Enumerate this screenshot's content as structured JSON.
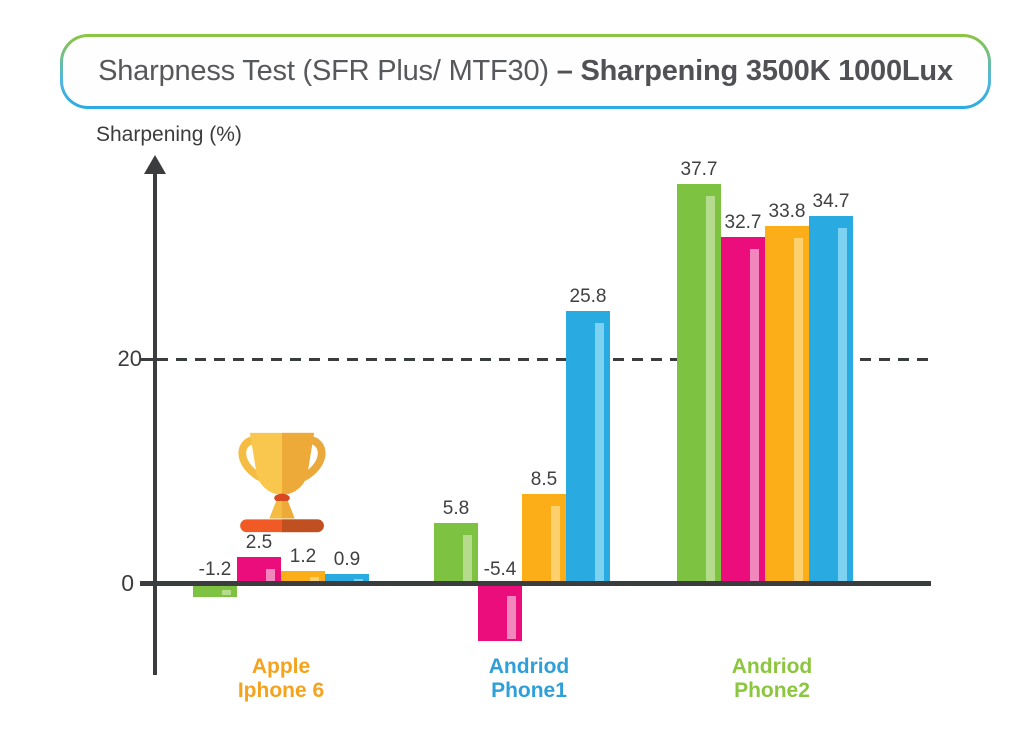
{
  "title": {
    "regular": "Sharpness Test (SFR Plus/ MTF30) ",
    "bold": "– Sharpening 3500K 1000Lux"
  },
  "y_axis": {
    "label": "Sharpening (%)",
    "tick_zero": "0",
    "tick_twenty": "20"
  },
  "groups": [
    {
      "line1": "Apple",
      "line2": "Iphone 6",
      "color": "#F5A21D"
    },
    {
      "line1": "Andriod",
      "line2": "Phone1",
      "color": "#2E9FD8"
    },
    {
      "line1": "Andriod",
      "line2": "Phone2",
      "color": "#8CC63F"
    }
  ],
  "trophy": {
    "icon": "trophy-icon",
    "position": "above Apple Iphone 6 bars"
  },
  "chart_data": {
    "type": "bar",
    "title": "Sharpness Test (SFR Plus/ MTF30) – Sharpening 3500K 1000Lux",
    "ylabel": "Sharpening (%)",
    "categories": [
      "Apple Iphone 6",
      "Andriod Phone1",
      "Andriod Phone2"
    ],
    "series": [
      {
        "name": "series-green",
        "color": "#7EC242",
        "highlight": "#B4DC8C",
        "values": [
          -1.2,
          5.8,
          37.7
        ]
      },
      {
        "name": "series-pink",
        "color": "#EB0D7C",
        "highlight": "#F287BE",
        "values": [
          2.5,
          -5.4,
          32.7
        ]
      },
      {
        "name": "series-orange",
        "color": "#FBAE17",
        "highlight": "#FDD06E",
        "values": [
          1.2,
          8.5,
          33.8
        ]
      },
      {
        "name": "series-blue",
        "color": "#29ABE2",
        "highlight": "#7DD2F2",
        "values": [
          0.9,
          25.8,
          34.7
        ]
      }
    ],
    "value_labels": true,
    "yticks": [
      0,
      20
    ],
    "gridlines": [
      {
        "y": 20,
        "style": "dashed"
      }
    ],
    "ylim": [
      -8,
      42
    ],
    "legend": false
  }
}
